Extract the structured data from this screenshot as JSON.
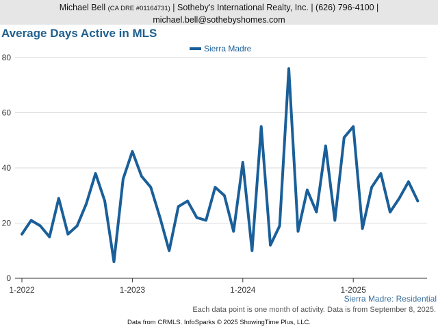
{
  "header": {
    "name": "Michael Bell",
    "license": "(CA DRE #01164731)",
    "rest_line1": "| Sotheby's International Realty, Inc. | (626) 796-4100 |",
    "email": "michael.bell@sothebyshomes.com"
  },
  "footer": {
    "note": "Each data point is one month of activity. Data is from September 8, 2025.",
    "source": "Data from CRMLS. InfoSparks © 2025 ShowingTime Plus, LLC."
  },
  "colors": {
    "series": "#1a5f99",
    "title": "#1f5f8e",
    "grid": "#d8d8d8"
  },
  "chart_data": {
    "type": "line",
    "title": "Average Days Active in MLS",
    "ylim": [
      0,
      80
    ],
    "yticks": [
      0,
      20,
      40,
      60,
      80
    ],
    "xlim": [
      "2022-01",
      "2025-09"
    ],
    "xtick_labels": [
      {
        "x": "2022-01",
        "label": "1-2022"
      },
      {
        "x": "2023-01",
        "label": "1-2023"
      },
      {
        "x": "2024-01",
        "label": "1-2024"
      },
      {
        "x": "2025-01",
        "label": "1-2025"
      }
    ],
    "grid": true,
    "legend": "top-center",
    "annotation": "Sierra Madre: Residential",
    "x": [
      "2022-01",
      "2022-02",
      "2022-03",
      "2022-04",
      "2022-05",
      "2022-06",
      "2022-07",
      "2022-08",
      "2022-09",
      "2022-10",
      "2022-11",
      "2022-12",
      "2023-01",
      "2023-02",
      "2023-03",
      "2023-04",
      "2023-05",
      "2023-06",
      "2023-07",
      "2023-08",
      "2023-09",
      "2023-10",
      "2023-11",
      "2023-12",
      "2024-01",
      "2024-02",
      "2024-03",
      "2024-04",
      "2024-05",
      "2024-06",
      "2024-07",
      "2024-08",
      "2024-09",
      "2024-10",
      "2024-11",
      "2024-12",
      "2025-01",
      "2025-02",
      "2025-03",
      "2025-04",
      "2025-05",
      "2025-06",
      "2025-07",
      "2025-08"
    ],
    "series": [
      {
        "name": "Sierra Madre",
        "values": [
          16,
          21,
          19,
          15,
          29,
          16,
          19,
          27,
          38,
          28,
          6,
          36,
          46,
          37,
          33,
          22,
          10,
          26,
          28,
          22,
          21,
          33,
          30,
          17,
          42,
          10,
          55,
          12,
          19,
          76,
          17,
          32,
          24,
          48,
          21,
          51,
          55,
          18,
          33,
          38,
          24,
          29,
          35,
          28
        ]
      }
    ]
  }
}
